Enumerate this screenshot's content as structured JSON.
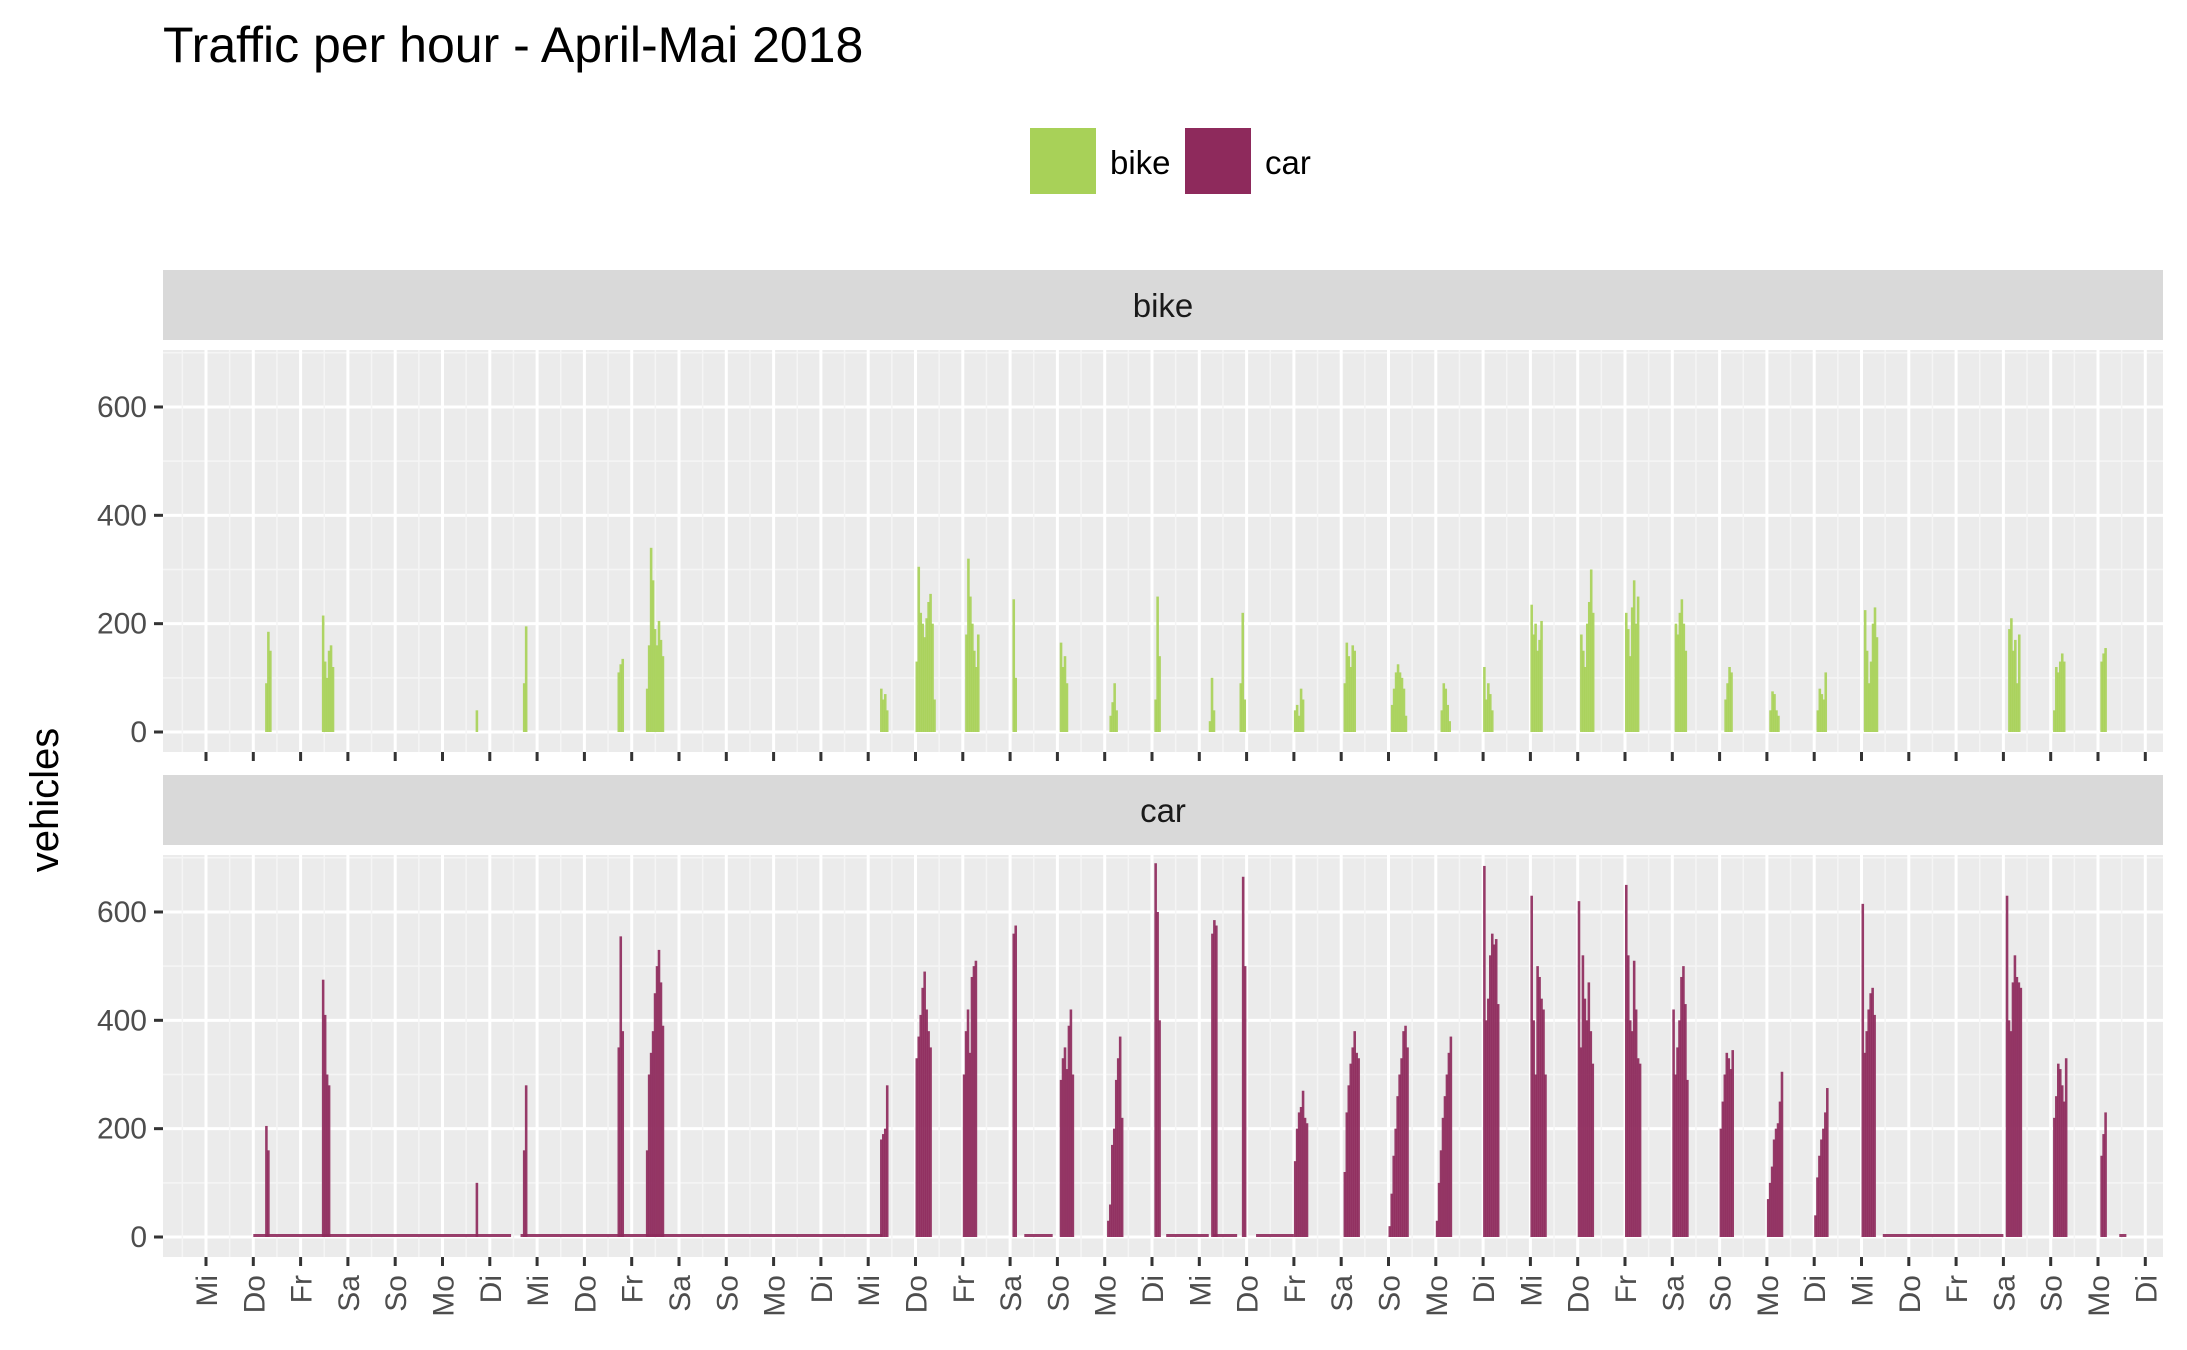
{
  "chart_data": {
    "type": "bar",
    "title": "Traffic per hour - April-Mai 2018",
    "ylabel": "vehicles",
    "xlabel": "",
    "ylim": [
      -35,
      720
    ],
    "yticks": [
      0,
      200,
      400,
      600
    ],
    "grid": true,
    "legend_position": "top",
    "x_day_labels": [
      "Mi",
      "Do",
      "Fr",
      "Sa",
      "So",
      "Mo",
      "Di",
      "Mi",
      "Do",
      "Fr",
      "Sa",
      "So",
      "Mo",
      "Di",
      "Mi",
      "Do",
      "Fr",
      "Sa",
      "So",
      "Mo",
      "Di",
      "Mi",
      "Do",
      "Fr",
      "Sa",
      "So",
      "Mo",
      "Di",
      "Mi",
      "Do",
      "Fr",
      "Sa",
      "So",
      "Mo",
      "Di",
      "Mi",
      "Do",
      "Fr",
      "Sa",
      "So",
      "Mo",
      "Di"
    ],
    "x_units": "day index (0 = first labeled Mi), hourly bars",
    "series": [
      {
        "name": "bike",
        "color": "#a8d158",
        "segments": [
          {
            "start": 1.25,
            "values": [
              90,
              185,
              150
            ]
          },
          {
            "start": 2.45,
            "values": [
              215,
              130,
              100,
              150,
              160,
              120
            ]
          },
          {
            "start": 5.7,
            "values": [
              40
            ]
          },
          {
            "start": 6.7,
            "values": [
              90,
              195
            ]
          },
          {
            "start": 8.7,
            "values": [
              110,
              125,
              135
            ]
          },
          {
            "start": 9.3,
            "values": [
              80,
              160,
              340,
              280,
              190,
              160,
              205,
              170,
              140
            ]
          },
          {
            "start": 14.25,
            "values": [
              80,
              60,
              70,
              40
            ]
          },
          {
            "start": 15.0,
            "values": [
              130,
              305,
              220,
              200,
              175,
              210,
              240,
              255,
              200,
              60
            ]
          },
          {
            "start": 16.05,
            "values": [
              180,
              320,
              250,
              200,
              150,
              120,
              180
            ]
          },
          {
            "start": 17.05,
            "values": [
              245,
              100
            ]
          },
          {
            "start": 18.05,
            "values": [
              165,
              120,
              140,
              90
            ]
          },
          {
            "start": 19.1,
            "values": [
              30,
              55,
              90,
              40
            ]
          },
          {
            "start": 20.05,
            "values": [
              60,
              250,
              140
            ]
          },
          {
            "start": 21.2,
            "values": [
              20,
              100,
              40
            ]
          },
          {
            "start": 21.85,
            "values": [
              90,
              220,
              60
            ]
          },
          {
            "start": 23.0,
            "values": [
              40,
              50,
              30,
              80,
              60
            ]
          },
          {
            "start": 24.05,
            "values": [
              90,
              165,
              140,
              120,
              160,
              150
            ]
          },
          {
            "start": 25.05,
            "values": [
              50,
              80,
              110,
              125,
              110,
              100,
              80,
              30
            ]
          },
          {
            "start": 26.1,
            "values": [
              40,
              90,
              80,
              50,
              20
            ]
          },
          {
            "start": 27.0,
            "values": [
              120,
              60,
              90,
              70,
              40
            ]
          },
          {
            "start": 28.0,
            "values": [
              235,
              180,
              200,
              150,
              170,
              205
            ]
          },
          {
            "start": 29.05,
            "values": [
              180,
              150,
              120,
              200,
              240,
              300,
              220
            ]
          },
          {
            "start": 30.0,
            "values": [
              220,
              190,
              140,
              230,
              280,
              200,
              250
            ]
          },
          {
            "start": 31.05,
            "values": [
              200,
              180,
              220,
              245,
              200,
              150
            ]
          },
          {
            "start": 32.1,
            "values": [
              60,
              90,
              120,
              110
            ]
          },
          {
            "start": 33.05,
            "values": [
              40,
              75,
              70,
              40,
              30
            ]
          },
          {
            "start": 34.05,
            "values": [
              40,
              80,
              70,
              60,
              110
            ]
          },
          {
            "start": 35.05,
            "values": [
              225,
              150,
              90,
              130,
              200,
              230,
              175
            ]
          },
          {
            "start": 38.1,
            "values": [
              190,
              210,
              150,
              170,
              90,
              180
            ]
          },
          {
            "start": 39.05,
            "values": [
              40,
              120,
              110,
              130,
              145,
              130
            ]
          },
          {
            "start": 40.05,
            "values": [
              130,
              145,
              155
            ]
          }
        ]
      },
      {
        "name": "car",
        "color": "#8e2a5c",
        "baseline_segments": [
          [
            1.0,
            6.45
          ],
          [
            6.65,
            14.3
          ],
          [
            17.3,
            17.9
          ],
          [
            20.3,
            21.2
          ],
          [
            21.3,
            21.8
          ],
          [
            22.2,
            23.0
          ],
          [
            35.45,
            38.0
          ],
          [
            40.45,
            40.6
          ]
        ],
        "segments": [
          {
            "start": 1.25,
            "values": [
              205,
              160
            ]
          },
          {
            "start": 2.45,
            "values": [
              475,
              410,
              300,
              280
            ]
          },
          {
            "start": 5.7,
            "values": [
              100
            ]
          },
          {
            "start": 6.7,
            "values": [
              160,
              280
            ]
          },
          {
            "start": 8.7,
            "values": [
              350,
              555,
              380
            ]
          },
          {
            "start": 9.3,
            "values": [
              160,
              300,
              340,
              380,
              450,
              500,
              530,
              470,
              390
            ]
          },
          {
            "start": 14.25,
            "values": [
              180,
              190,
              200,
              280
            ]
          },
          {
            "start": 15.0,
            "values": [
              330,
              370,
              410,
              460,
              490,
              420,
              380,
              350
            ]
          },
          {
            "start": 16.0,
            "values": [
              300,
              380,
              420,
              340,
              480,
              500,
              510
            ]
          },
          {
            "start": 17.05,
            "values": [
              560,
              575
            ]
          },
          {
            "start": 18.05,
            "values": [
              290,
              330,
              350,
              310,
              390,
              420,
              300
            ]
          },
          {
            "start": 19.05,
            "values": [
              30,
              60,
              170,
              200,
              290,
              330,
              370,
              220
            ]
          },
          {
            "start": 20.05,
            "values": [
              690,
              600,
              400
            ]
          },
          {
            "start": 21.25,
            "values": [
              560,
              585,
              575
            ]
          },
          {
            "start": 21.9,
            "values": [
              665,
              500
            ]
          },
          {
            "start": 23.0,
            "values": [
              140,
              200,
              230,
              240,
              270,
              220,
              210
            ]
          },
          {
            "start": 24.05,
            "values": [
              120,
              230,
              280,
              320,
              350,
              380,
              340,
              330
            ]
          },
          {
            "start": 25.0,
            "values": [
              20,
              80,
              150,
              200,
              260,
              300,
              330,
              380,
              390,
              350
            ]
          },
          {
            "start": 26.0,
            "values": [
              30,
              100,
              160,
              220,
              260,
              300,
              340,
              370
            ]
          },
          {
            "start": 27.0,
            "values": [
              685,
              400,
              440,
              520,
              560,
              540,
              550,
              430
            ]
          },
          {
            "start": 28.0,
            "values": [
              630,
              400,
              300,
              500,
              480,
              440,
              420,
              300
            ]
          },
          {
            "start": 29.0,
            "values": [
              620,
              350,
              520,
              440,
              400,
              470,
              380,
              320
            ]
          },
          {
            "start": 30.0,
            "values": [
              650,
              520,
              400,
              380,
              510,
              420,
              330,
              320
            ]
          },
          {
            "start": 31.0,
            "values": [
              420,
              300,
              350,
              400,
              480,
              500,
              430,
              290
            ]
          },
          {
            "start": 32.0,
            "values": [
              200,
              250,
              300,
              340,
              330,
              310,
              345
            ]
          },
          {
            "start": 33.0,
            "values": [
              70,
              100,
              130,
              180,
              200,
              210,
              250,
              305
            ]
          },
          {
            "start": 34.0,
            "values": [
              40,
              110,
              150,
              180,
              200,
              230,
              275
            ]
          },
          {
            "start": 35.0,
            "values": [
              615,
              340,
              380,
              420,
              450,
              460,
              410
            ]
          },
          {
            "start": 38.05,
            "values": [
              630,
              400,
              380,
              470,
              520,
              480,
              470,
              460
            ]
          },
          {
            "start": 39.05,
            "values": [
              220,
              260,
              320,
              310,
              280,
              250,
              330
            ]
          },
          {
            "start": 40.05,
            "values": [
              150,
              190,
              230
            ]
          }
        ]
      }
    ]
  }
}
